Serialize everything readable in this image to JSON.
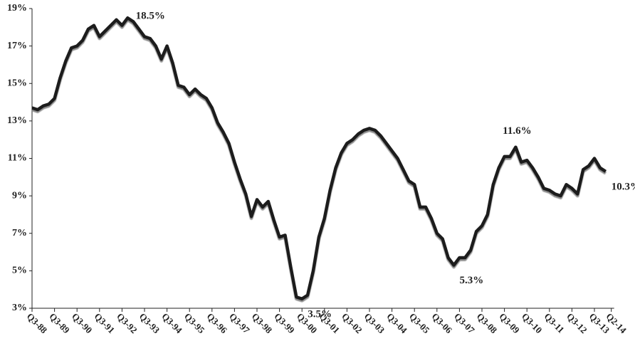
{
  "chart_data": {
    "type": "line",
    "categories": [
      "Q3-88",
      null,
      null,
      null,
      "Q3-89",
      null,
      null,
      null,
      "Q3-90",
      null,
      null,
      null,
      "Q3-91",
      null,
      null,
      null,
      "Q3-92",
      null,
      null,
      null,
      "Q3-93",
      null,
      null,
      null,
      "Q3-94",
      null,
      null,
      null,
      "Q3-95",
      null,
      null,
      null,
      "Q3-96",
      null,
      null,
      null,
      "Q3-97",
      null,
      null,
      null,
      "Q3-98",
      null,
      null,
      null,
      "Q3-99",
      null,
      null,
      null,
      "Q3-00",
      null,
      null,
      null,
      "Q3-01",
      null,
      null,
      null,
      "Q3-02",
      null,
      null,
      null,
      "Q3-03",
      null,
      null,
      null,
      "Q3-04",
      null,
      null,
      null,
      "Q3-05",
      null,
      null,
      null,
      "Q3-06",
      null,
      null,
      null,
      "Q3-07",
      null,
      null,
      null,
      "Q3-08",
      null,
      null,
      null,
      "Q3-09",
      null,
      null,
      null,
      "Q3-10",
      null,
      null,
      null,
      "Q3-11",
      null,
      null,
      null,
      "Q3-12",
      null,
      null,
      null,
      "Q3-13",
      null,
      null,
      "Q2-14"
    ],
    "values": [
      13.7,
      13.6,
      13.8,
      13.9,
      14.2,
      15.3,
      16.2,
      16.9,
      17.0,
      17.3,
      17.9,
      18.1,
      17.5,
      17.8,
      18.1,
      18.4,
      18.1,
      18.5,
      18.3,
      17.9,
      17.5,
      17.4,
      17.0,
      16.3,
      17.0,
      16.1,
      14.9,
      14.8,
      14.4,
      14.7,
      14.4,
      14.2,
      13.7,
      12.9,
      12.4,
      11.8,
      10.8,
      9.9,
      9.1,
      7.9,
      8.8,
      8.4,
      8.7,
      7.7,
      6.8,
      6.9,
      5.2,
      3.6,
      3.5,
      3.7,
      5.0,
      6.8,
      7.8,
      9.3,
      10.5,
      11.3,
      11.8,
      12.0,
      12.3,
      12.5,
      12.6,
      12.5,
      12.2,
      11.8,
      11.4,
      11.0,
      10.4,
      9.8,
      9.6,
      8.4,
      8.4,
      7.8,
      7.0,
      6.7,
      5.7,
      5.3,
      5.7,
      5.7,
      6.1,
      7.1,
      7.4,
      8.0,
      9.6,
      10.5,
      11.1,
      11.1,
      11.6,
      10.8,
      10.9,
      10.5,
      10.0,
      9.4,
      9.3,
      9.1,
      9.0,
      9.6,
      9.4,
      9.1,
      10.4,
      10.6,
      11.0,
      10.5,
      10.3,
      null
    ],
    "value_labels": [
      null,
      null,
      null,
      null,
      null,
      null,
      null,
      null,
      null,
      null,
      null,
      null,
      null,
      null,
      null,
      null,
      null,
      "18.5%",
      null,
      null,
      null,
      null,
      null,
      null,
      null,
      null,
      null,
      null,
      null,
      null,
      null,
      null,
      null,
      null,
      null,
      null,
      null,
      null,
      null,
      null,
      null,
      null,
      null,
      null,
      null,
      null,
      null,
      null,
      "3.5%",
      null,
      null,
      null,
      null,
      null,
      null,
      null,
      null,
      null,
      null,
      null,
      null,
      null,
      null,
      null,
      null,
      null,
      null,
      null,
      null,
      null,
      null,
      null,
      null,
      null,
      null,
      "5.3%",
      null,
      null,
      null,
      null,
      null,
      null,
      null,
      null,
      null,
      null,
      "11.6%",
      null,
      null,
      null,
      null,
      null,
      null,
      null,
      null,
      null,
      null,
      null,
      null,
      null,
      null,
      null,
      "10.3%",
      null
    ],
    "color": "#1a1a1a",
    "ylim": [
      3,
      19
    ],
    "yticks": [
      {
        "value": 3,
        "label": "3%"
      },
      {
        "value": 5,
        "label": "5%"
      },
      {
        "value": 7,
        "label": "7%"
      },
      {
        "value": 9,
        "label": "9%"
      },
      {
        "value": 11,
        "label": "11%"
      },
      {
        "value": 13,
        "label": "13%"
      },
      {
        "value": 15,
        "label": "15%"
      },
      {
        "value": 17,
        "label": "17%"
      },
      {
        "value": 19,
        "label": "19%"
      }
    ],
    "grid": false
  }
}
